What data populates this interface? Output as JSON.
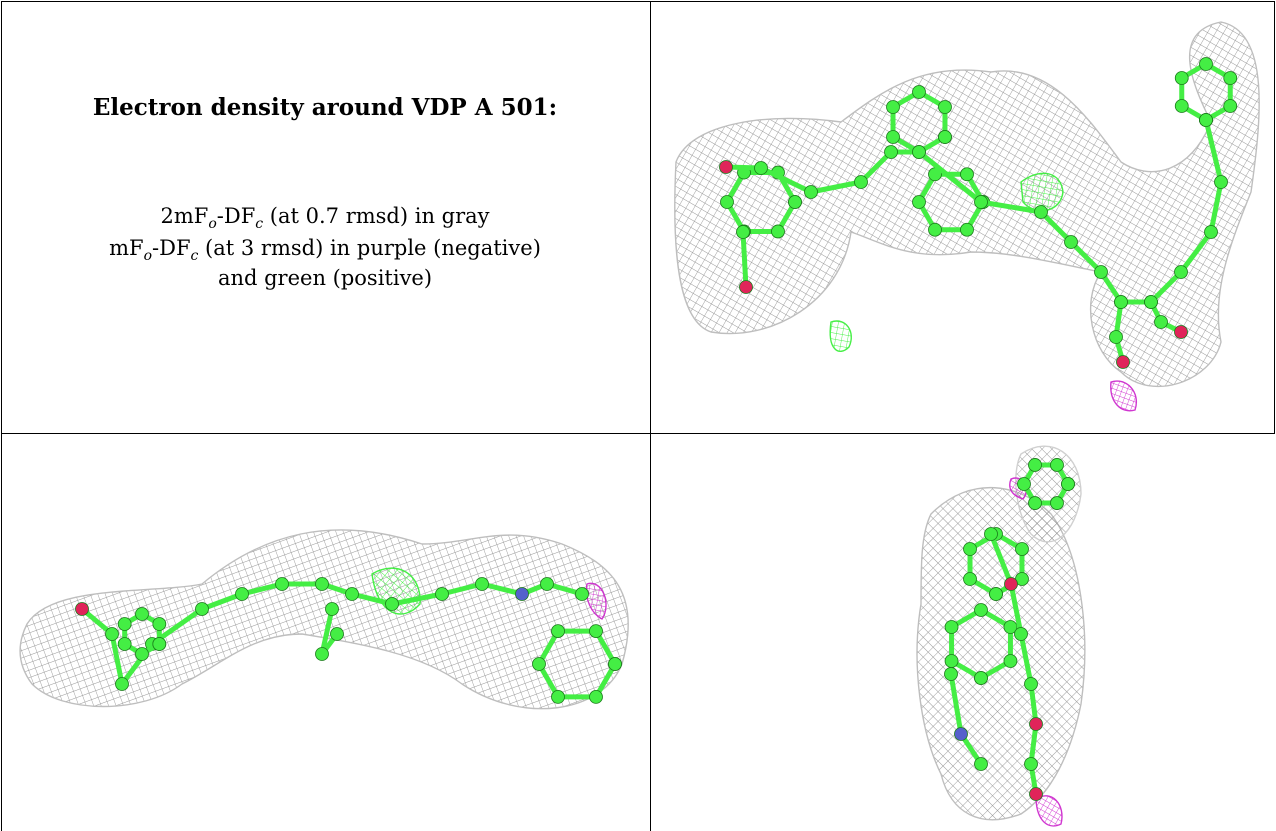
{
  "caption": {
    "title": "Electron density around VDP A 501:",
    "line1": {
      "lead": "2mF",
      "sub1": "o",
      "mid": "-DF",
      "sub2": "c",
      "tail": " (at 0.7 rmsd) in gray"
    },
    "line2": {
      "lead": "mF",
      "sub1": "o",
      "mid": "-DF",
      "sub2": "c",
      "tail": " (at 3 rmsd) in purple (negative)"
    },
    "line3": "and green (positive)"
  },
  "colors": {
    "mesh_2fofc": "#8c8c8c",
    "mesh_positive": "#33ee33",
    "mesh_negative": "#cc22cc",
    "carbon": "#44ee44",
    "oxygen": "#e0245a",
    "nitrogen": "#5560cc"
  },
  "panels": [
    {
      "name": "view-1",
      "description_icon": "molecule-mesh"
    },
    {
      "name": "view-2",
      "description_icon": "molecule-mesh"
    },
    {
      "name": "view-3",
      "description_icon": "molecule-mesh"
    }
  ]
}
